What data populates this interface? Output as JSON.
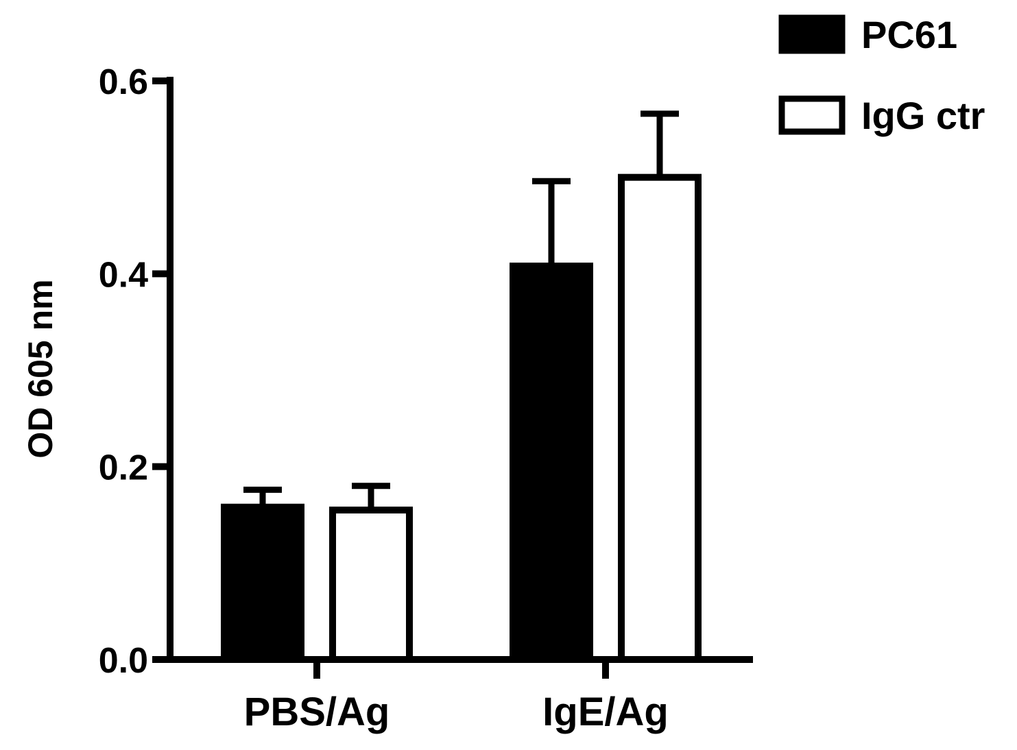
{
  "chart_data": {
    "type": "bar",
    "title": "",
    "xlabel": "",
    "ylabel": "OD 605 nm",
    "ylim": [
      0,
      0.6
    ],
    "yticks": [
      "0.0",
      "0.2",
      "0.4",
      "0.6"
    ],
    "categories": [
      "PBS/Ag",
      "IgE/Ag"
    ],
    "grid": false,
    "legend_position": "top-right",
    "series": [
      {
        "name": "PC61",
        "values": [
          0.158,
          0.408
        ],
        "errors": [
          0.018,
          0.088
        ],
        "fill": "#000000"
      },
      {
        "name": "IgG ctr",
        "values": [
          0.155,
          0.5
        ],
        "errors": [
          0.025,
          0.066
        ],
        "fill": "#ffffff"
      }
    ]
  }
}
